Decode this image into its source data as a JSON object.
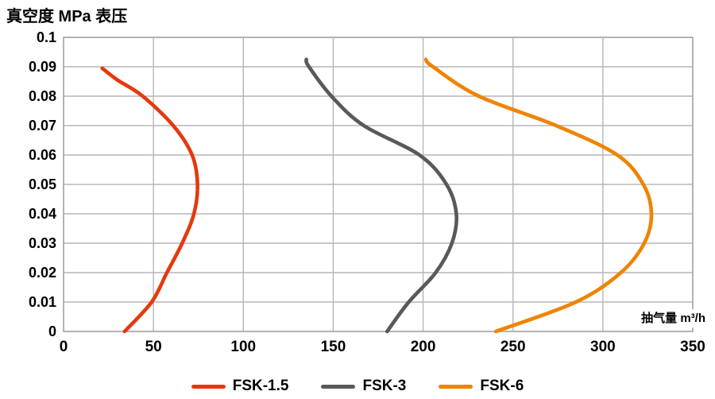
{
  "title": "真空度 MPa 表压",
  "colors": {
    "grid": "#b6b6b6",
    "frame": "#a8a8a8",
    "text": "#000000",
    "background": "#ffffff",
    "series_red": "#e6380d",
    "series_gray": "#595959",
    "series_orange": "#f08300"
  },
  "chart_data": {
    "type": "line",
    "title": "真空度 MPa 表压",
    "xlabel": "抽气量 m³/h",
    "ylabel": "真空度 MPa 表压",
    "xlim": [
      0,
      350
    ],
    "ylim": [
      0,
      0.1
    ],
    "x_tick_step": 50,
    "y_tick_step": 0.01,
    "grid": true,
    "legend_position": "bottom-center",
    "x_tick_labels": [
      "0",
      "50",
      "100",
      "150",
      "200",
      "250",
      "300",
      "350"
    ],
    "y_tick_labels": [
      "0.1",
      "0.09",
      "0.08",
      "0.07",
      "0.06",
      "0.05",
      "0.04",
      "0.03",
      "0.02",
      "0.01",
      "0"
    ],
    "series": [
      {
        "name": "FSK-1.5",
        "color": "#e6380d",
        "points": [
          [
            21.5,
            0.0895
          ],
          [
            30,
            0.0855
          ],
          [
            44,
            0.08
          ],
          [
            61,
            0.07
          ],
          [
            71.5,
            0.06
          ],
          [
            74.5,
            0.05
          ],
          [
            72.5,
            0.04
          ],
          [
            66,
            0.03
          ],
          [
            57.5,
            0.02
          ],
          [
            49,
            0.01
          ],
          [
            34,
            0
          ]
        ]
      },
      {
        "name": "FSK-3",
        "color": "#595959",
        "points": [
          [
            135,
            0.0925
          ],
          [
            136.5,
            0.09
          ],
          [
            149,
            0.08
          ],
          [
            167,
            0.07
          ],
          [
            198,
            0.06
          ],
          [
            213,
            0.05
          ],
          [
            218.5,
            0.04
          ],
          [
            216,
            0.03
          ],
          [
            207,
            0.02
          ],
          [
            192,
            0.01
          ],
          [
            180,
            0
          ]
        ]
      },
      {
        "name": "FSK-6",
        "color": "#f08300",
        "points": [
          [
            201.5,
            0.0925
          ],
          [
            205.5,
            0.09
          ],
          [
            231,
            0.08
          ],
          [
            274,
            0.07
          ],
          [
            308,
            0.06
          ],
          [
            322.5,
            0.05
          ],
          [
            327,
            0.04
          ],
          [
            323,
            0.03
          ],
          [
            310,
            0.02
          ],
          [
            285,
            0.01
          ],
          [
            240.5,
            0
          ]
        ]
      }
    ]
  }
}
